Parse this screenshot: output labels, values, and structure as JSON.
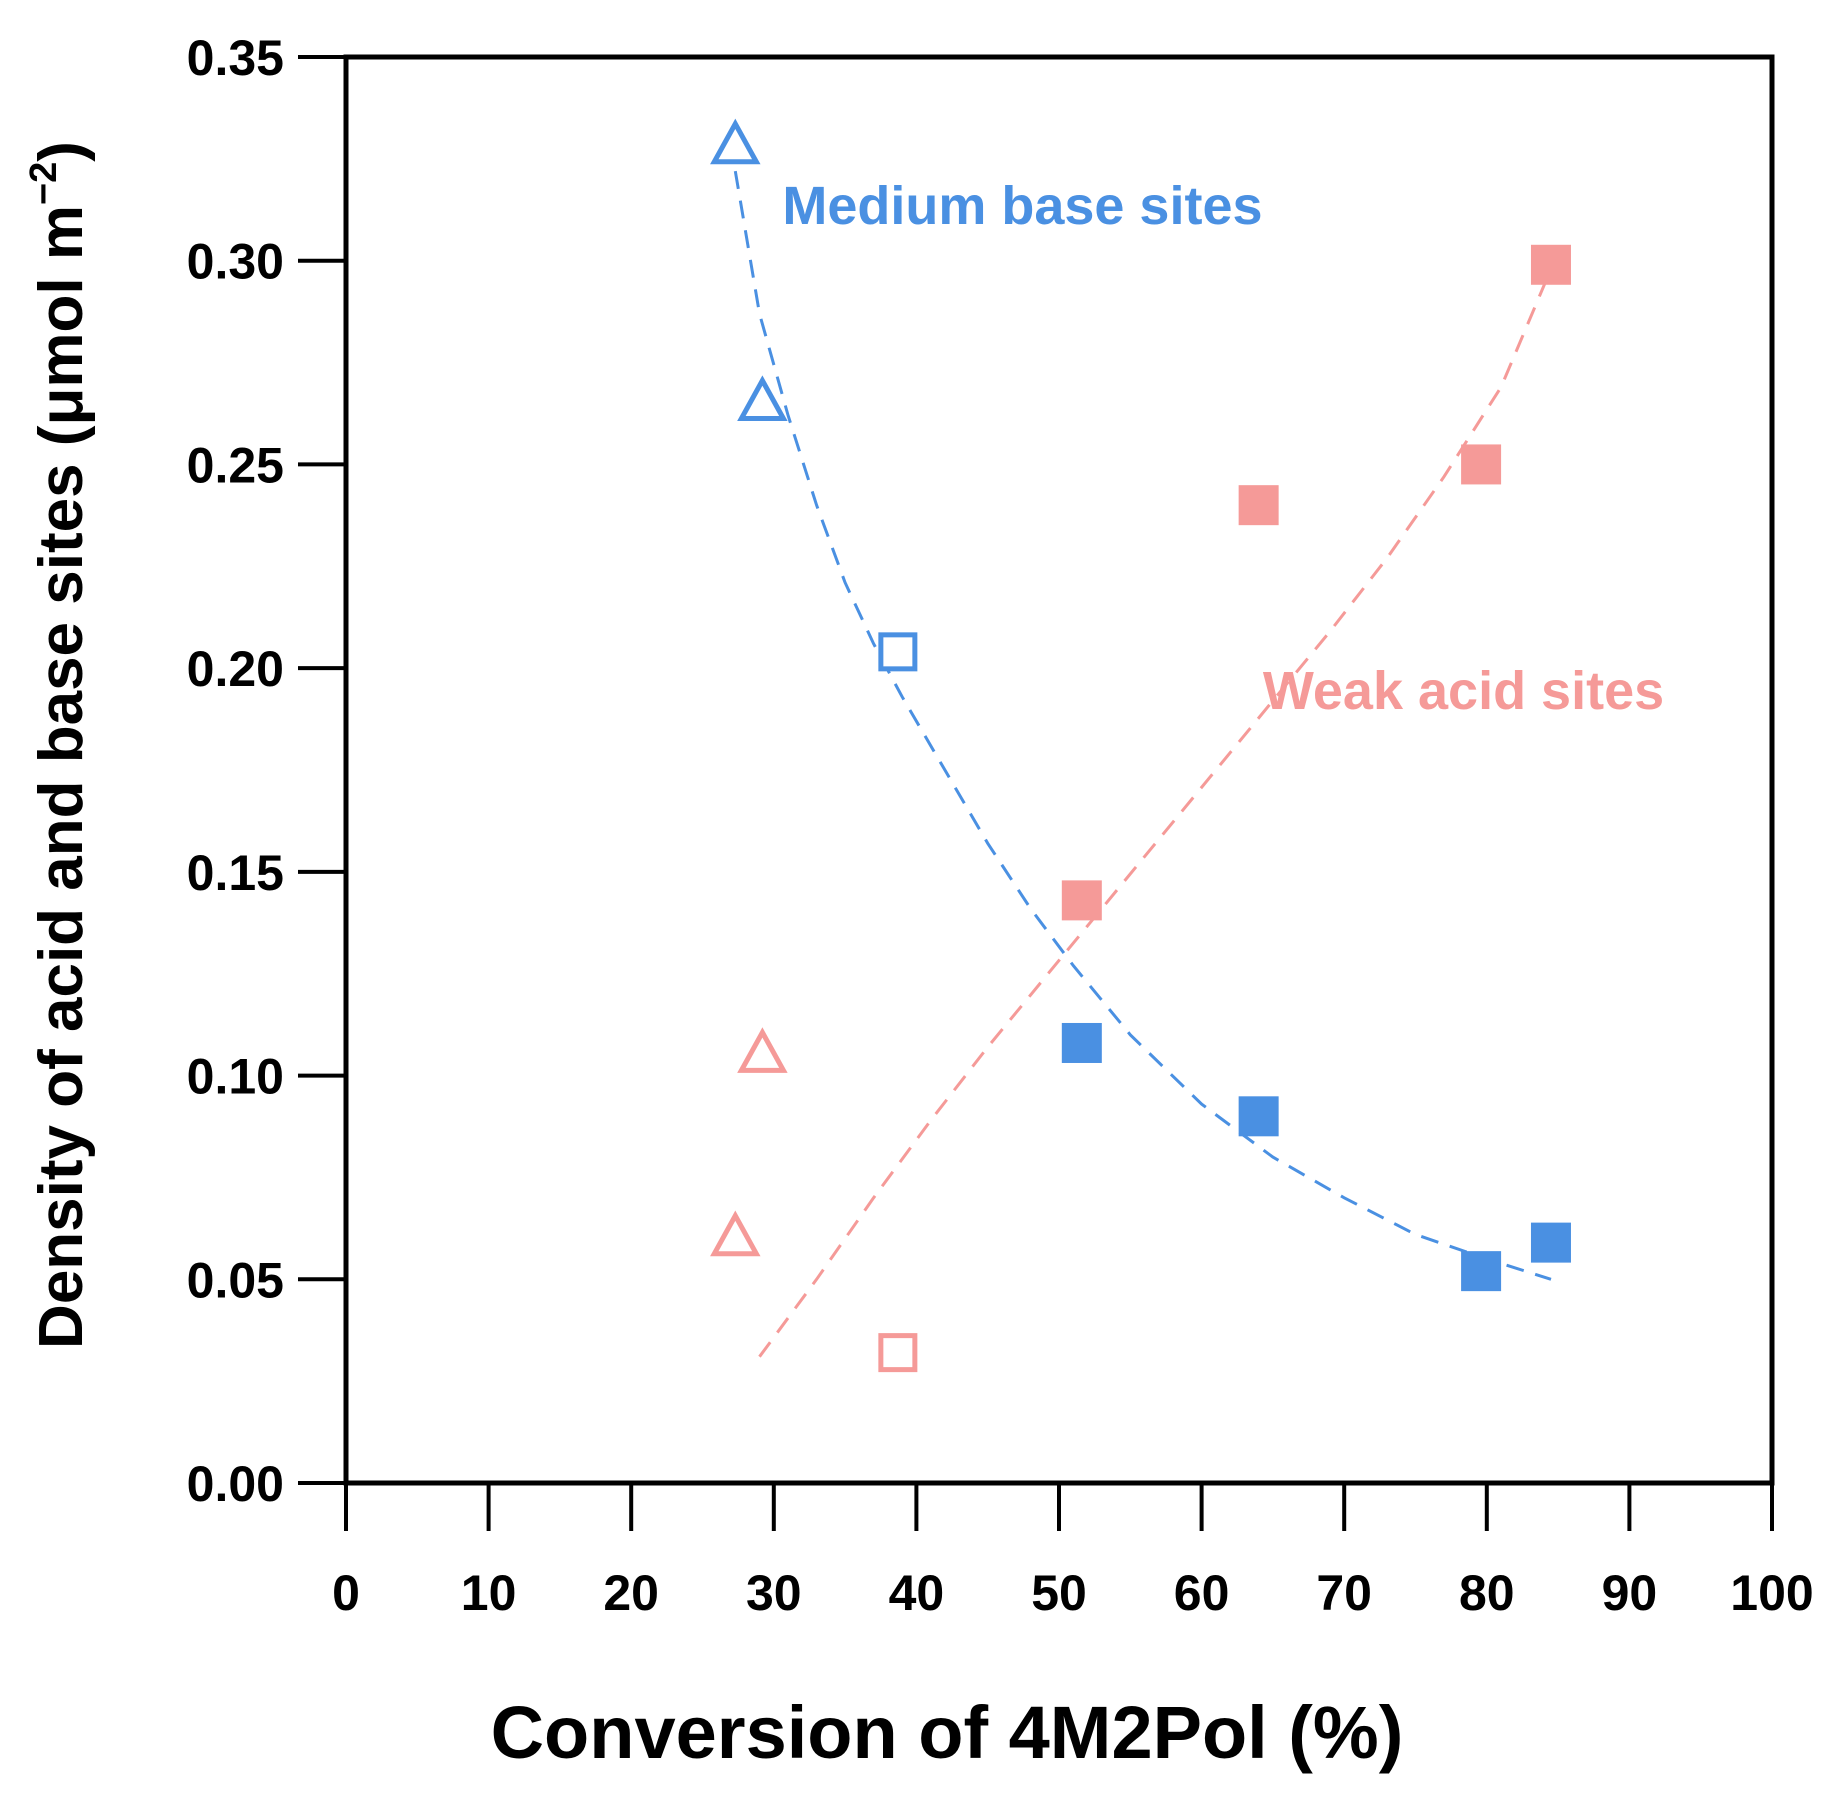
{
  "chart_data": {
    "type": "scatter",
    "title": "",
    "xlabel": "Conversion of 4M2Pol (%)",
    "ylabel_main": "Density of acid and base sites (μmol m",
    "ylabel_sup": "−2",
    "ylabel_close": ")",
    "xlim": [
      0,
      100
    ],
    "ylim": [
      0,
      0.35
    ],
    "xticks": [
      0,
      10,
      20,
      30,
      40,
      50,
      60,
      70,
      80,
      90,
      100
    ],
    "xtick_labels": [
      "0",
      "10",
      "20",
      "30",
      "40",
      "50",
      "60",
      "70",
      "80",
      "90",
      "100"
    ],
    "yticks": [
      0,
      0.05,
      0.1,
      0.15,
      0.2,
      0.25,
      0.3,
      0.35
    ],
    "ytick_labels": [
      "0.00",
      "0.05",
      "0.10",
      "0.15",
      "0.20",
      "0.25",
      "0.30",
      "0.35"
    ],
    "grid": false,
    "colors": {
      "base": "#4a90e2",
      "acid": "#f59a98",
      "axis": "#000000"
    },
    "series": [
      {
        "name": "Medium base sites",
        "color": "#4a90e2",
        "points": [
          {
            "x": 27.3,
            "y": 0.328,
            "marker": "triangle-open"
          },
          {
            "x": 29.2,
            "y": 0.265,
            "marker": "triangle-open"
          },
          {
            "x": 38.7,
            "y": 0.204,
            "marker": "square-open"
          },
          {
            "x": 51.6,
            "y": 0.108,
            "marker": "square-filled"
          },
          {
            "x": 64.0,
            "y": 0.09,
            "marker": "square-filled"
          },
          {
            "x": 79.6,
            "y": 0.052,
            "marker": "square-filled"
          },
          {
            "x": 84.5,
            "y": 0.059,
            "marker": "square-filled"
          }
        ],
        "trend": {
          "type": "exponential",
          "x": [
            27.3,
            29,
            31,
            33,
            35,
            37,
            39,
            42,
            45,
            48,
            51,
            55,
            60,
            65,
            70,
            75,
            80,
            84.5
          ],
          "y": [
            0.322,
            0.287,
            0.262,
            0.24,
            0.221,
            0.206,
            0.193,
            0.175,
            0.157,
            0.141,
            0.127,
            0.11,
            0.093,
            0.08,
            0.07,
            0.061,
            0.055,
            0.05
          ]
        }
      },
      {
        "name": "Weak acid sites",
        "color": "#f59a98",
        "points": [
          {
            "x": 29.2,
            "y": 0.105,
            "marker": "triangle-open"
          },
          {
            "x": 27.3,
            "y": 0.06,
            "marker": "triangle-open"
          },
          {
            "x": 38.7,
            "y": 0.032,
            "marker": "square-open"
          },
          {
            "x": 51.6,
            "y": 0.143,
            "marker": "square-filled"
          },
          {
            "x": 64.0,
            "y": 0.24,
            "marker": "square-filled"
          },
          {
            "x": 79.6,
            "y": 0.25,
            "marker": "square-filled"
          },
          {
            "x": 84.5,
            "y": 0.299,
            "marker": "square-filled"
          }
        ],
        "trend": {
          "type": "exponential",
          "x": [
            29,
            33,
            37,
            41,
            45,
            49,
            53,
            57,
            61,
            65,
            69,
            73,
            77,
            81,
            84.5
          ],
          "y": [
            0.031,
            0.05,
            0.07,
            0.089,
            0.107,
            0.124,
            0.141,
            0.158,
            0.175,
            0.192,
            0.209,
            0.227,
            0.247,
            0.269,
            0.298
          ]
        }
      }
    ],
    "annotations": [
      {
        "series": "Medium base sites",
        "text": "Medium base sites",
        "x": 30.6,
        "y": 0.309
      },
      {
        "series": "Weak acid sites",
        "text": "Weak acid sites",
        "x": 64.3,
        "y": 0.19
      }
    ]
  }
}
